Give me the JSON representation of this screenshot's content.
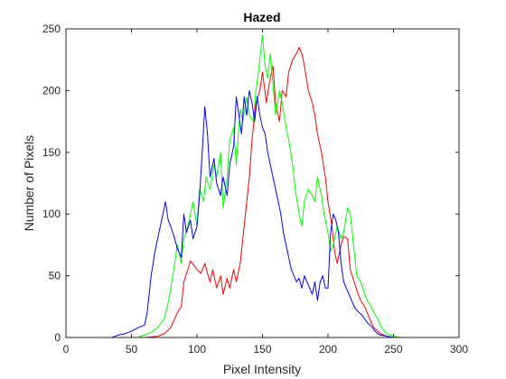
{
  "chart_data": {
    "type": "line",
    "title": "Hazed",
    "xlabel": "Pixel Intensity",
    "ylabel": "Number of Pixels",
    "xlim": [
      0,
      300
    ],
    "ylim": [
      0,
      250
    ],
    "xticks": [
      0,
      50,
      100,
      150,
      200,
      250,
      300
    ],
    "yticks": [
      0,
      50,
      100,
      150,
      200,
      250
    ],
    "grid": false,
    "legend": "none",
    "series": [
      {
        "color": "#ff0000",
        "points": [
          [
            0,
            0
          ],
          [
            60,
            0
          ],
          [
            70,
            1
          ],
          [
            75,
            3
          ],
          [
            80,
            8
          ],
          [
            85,
            20
          ],
          [
            88,
            25
          ],
          [
            90,
            45
          ],
          [
            93,
            55
          ],
          [
            95,
            62
          ],
          [
            98,
            58
          ],
          [
            100,
            55
          ],
          [
            103,
            52
          ],
          [
            106,
            60
          ],
          [
            108,
            52
          ],
          [
            110,
            45
          ],
          [
            112,
            55
          ],
          [
            115,
            40
          ],
          [
            118,
            50
          ],
          [
            120,
            35
          ],
          [
            123,
            48
          ],
          [
            125,
            40
          ],
          [
            128,
            55
          ],
          [
            130,
            45
          ],
          [
            133,
            60
          ],
          [
            135,
            80
          ],
          [
            138,
            110
          ],
          [
            140,
            130
          ],
          [
            142,
            160
          ],
          [
            145,
            190
          ],
          [
            148,
            200
          ],
          [
            150,
            215
          ],
          [
            153,
            190
          ],
          [
            155,
            205
          ],
          [
            158,
            220
          ],
          [
            160,
            190
          ],
          [
            163,
            175
          ],
          [
            165,
            200
          ],
          [
            168,
            195
          ],
          [
            170,
            215
          ],
          [
            173,
            225
          ],
          [
            176,
            230
          ],
          [
            178,
            235
          ],
          [
            180,
            230
          ],
          [
            182,
            220
          ],
          [
            185,
            200
          ],
          [
            188,
            190
          ],
          [
            190,
            180
          ],
          [
            192,
            165
          ],
          [
            195,
            150
          ],
          [
            198,
            130
          ],
          [
            200,
            110
          ],
          [
            203,
            90
          ],
          [
            205,
            70
          ],
          [
            207,
            60
          ],
          [
            210,
            75
          ],
          [
            212,
            82
          ],
          [
            215,
            80
          ],
          [
            217,
            55
          ],
          [
            220,
            45
          ],
          [
            223,
            35
          ],
          [
            225,
            30
          ],
          [
            228,
            25
          ],
          [
            230,
            20
          ],
          [
            233,
            12
          ],
          [
            235,
            8
          ],
          [
            238,
            5
          ],
          [
            240,
            3
          ],
          [
            245,
            1
          ],
          [
            250,
            0
          ],
          [
            300,
            0
          ]
        ]
      },
      {
        "color": "#00ff00",
        "points": [
          [
            0,
            0
          ],
          [
            55,
            0
          ],
          [
            60,
            2
          ],
          [
            65,
            4
          ],
          [
            70,
            8
          ],
          [
            75,
            15
          ],
          [
            78,
            28
          ],
          [
            80,
            40
          ],
          [
            83,
            60
          ],
          [
            85,
            75
          ],
          [
            88,
            60
          ],
          [
            90,
            80
          ],
          [
            93,
            90
          ],
          [
            95,
            100
          ],
          [
            97,
            110
          ],
          [
            100,
            90
          ],
          [
            102,
            120
          ],
          [
            105,
            110
          ],
          [
            107,
            130
          ],
          [
            110,
            120
          ],
          [
            113,
            140
          ],
          [
            115,
            130
          ],
          [
            118,
            150
          ],
          [
            120,
            105
          ],
          [
            123,
            130
          ],
          [
            125,
            160
          ],
          [
            128,
            170
          ],
          [
            130,
            140
          ],
          [
            133,
            185
          ],
          [
            135,
            175
          ],
          [
            138,
            195
          ],
          [
            140,
            180
          ],
          [
            143,
            175
          ],
          [
            145,
            200
          ],
          [
            147,
            215
          ],
          [
            150,
            245
          ],
          [
            152,
            220
          ],
          [
            154,
            210
          ],
          [
            156,
            230
          ],
          [
            158,
            205
          ],
          [
            160,
            180
          ],
          [
            163,
            200
          ],
          [
            165,
            190
          ],
          [
            168,
            170
          ],
          [
            170,
            160
          ],
          [
            173,
            140
          ],
          [
            175,
            120
          ],
          [
            178,
            100
          ],
          [
            180,
            90
          ],
          [
            182,
            110
          ],
          [
            185,
            120
          ],
          [
            188,
            115
          ],
          [
            190,
            110
          ],
          [
            192,
            130
          ],
          [
            195,
            115
          ],
          [
            197,
            100
          ],
          [
            200,
            85
          ],
          [
            202,
            70
          ],
          [
            204,
            75
          ],
          [
            207,
            90
          ],
          [
            210,
            80
          ],
          [
            212,
            85
          ],
          [
            215,
            105
          ],
          [
            217,
            100
          ],
          [
            220,
            70
          ],
          [
            222,
            50
          ],
          [
            225,
            45
          ],
          [
            228,
            35
          ],
          [
            230,
            30
          ],
          [
            233,
            25
          ],
          [
            235,
            20
          ],
          [
            238,
            15
          ],
          [
            240,
            10
          ],
          [
            243,
            5
          ],
          [
            245,
            3
          ],
          [
            250,
            1
          ],
          [
            255,
            0
          ],
          [
            300,
            0
          ]
        ]
      },
      {
        "color": "#0000ff",
        "points": [
          [
            0,
            0
          ],
          [
            35,
            0
          ],
          [
            40,
            2
          ],
          [
            45,
            3
          ],
          [
            50,
            5
          ],
          [
            55,
            8
          ],
          [
            60,
            10
          ],
          [
            62,
            20
          ],
          [
            65,
            50
          ],
          [
            68,
            70
          ],
          [
            70,
            80
          ],
          [
            72,
            90
          ],
          [
            74,
            100
          ],
          [
            76,
            110
          ],
          [
            78,
            95
          ],
          [
            80,
            90
          ],
          [
            83,
            80
          ],
          [
            85,
            72
          ],
          [
            88,
            65
          ],
          [
            90,
            100
          ],
          [
            92,
            85
          ],
          [
            95,
            95
          ],
          [
            97,
            80
          ],
          [
            100,
            90
          ],
          [
            102,
            115
          ],
          [
            104,
            150
          ],
          [
            106,
            187
          ],
          [
            108,
            165
          ],
          [
            110,
            130
          ],
          [
            113,
            145
          ],
          [
            115,
            125
          ],
          [
            118,
            115
          ],
          [
            120,
            130
          ],
          [
            123,
            115
          ],
          [
            125,
            140
          ],
          [
            128,
            155
          ],
          [
            130,
            195
          ],
          [
            132,
            180
          ],
          [
            134,
            165
          ],
          [
            136,
            195
          ],
          [
            138,
            180
          ],
          [
            140,
            200
          ],
          [
            142,
            190
          ],
          [
            144,
            175
          ],
          [
            146,
            195
          ],
          [
            148,
            180
          ],
          [
            150,
            170
          ],
          [
            152,
            165
          ],
          [
            154,
            150
          ],
          [
            156,
            140
          ],
          [
            158,
            130
          ],
          [
            160,
            120
          ],
          [
            162,
            110
          ],
          [
            164,
            100
          ],
          [
            166,
            85
          ],
          [
            168,
            75
          ],
          [
            170,
            65
          ],
          [
            172,
            55
          ],
          [
            174,
            50
          ],
          [
            176,
            45
          ],
          [
            178,
            48
          ],
          [
            180,
            40
          ],
          [
            182,
            50
          ],
          [
            184,
            45
          ],
          [
            186,
            40
          ],
          [
            188,
            35
          ],
          [
            190,
            45
          ],
          [
            192,
            30
          ],
          [
            194,
            45
          ],
          [
            196,
            50
          ],
          [
            198,
            40
          ],
          [
            200,
            40
          ],
          [
            202,
            85
          ],
          [
            204,
            100
          ],
          [
            206,
            95
          ],
          [
            208,
            85
          ],
          [
            210,
            60
          ],
          [
            212,
            45
          ],
          [
            214,
            40
          ],
          [
            216,
            35
          ],
          [
            218,
            30
          ],
          [
            220,
            25
          ],
          [
            222,
            22
          ],
          [
            224,
            20
          ],
          [
            226,
            18
          ],
          [
            228,
            15
          ],
          [
            230,
            12
          ],
          [
            232,
            10
          ],
          [
            234,
            8
          ],
          [
            236,
            5
          ],
          [
            238,
            3
          ],
          [
            240,
            2
          ],
          [
            245,
            1
          ],
          [
            250,
            0
          ],
          [
            300,
            0
          ]
        ]
      }
    ]
  }
}
